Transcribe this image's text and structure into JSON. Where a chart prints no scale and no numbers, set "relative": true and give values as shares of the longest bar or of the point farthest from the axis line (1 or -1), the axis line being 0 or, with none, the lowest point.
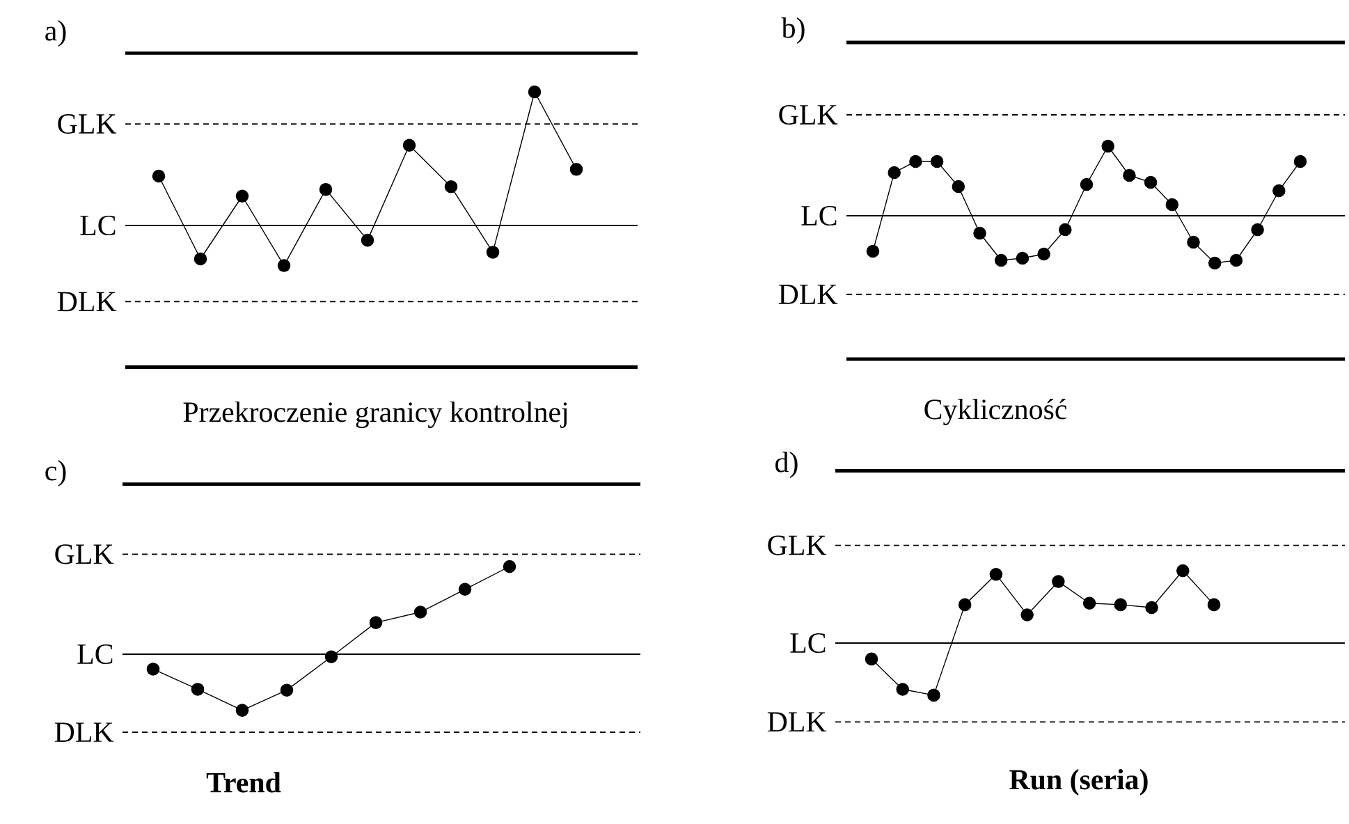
{
  "chart_data": [
    {
      "type": "line",
      "title": "a)",
      "xlabel": "Przekroczenie granicy kontrolnej",
      "categories": [
        null,
        null,
        null,
        null,
        null,
        null,
        null,
        null,
        null,
        null,
        null
      ],
      "relative": true,
      "marker": "circle",
      "line_style": "solid",
      "series": [
        {
          "color": "#000000",
          "values": [
            0.37,
            -0.25,
            0.22,
            -0.3,
            0.27,
            -0.11,
            0.6,
            0.29,
            -0.2,
            1,
            0.42
          ]
        }
      ],
      "ref_lines": [
        {
          "axis": "y",
          "value": 1.29,
          "color": "#000000",
          "line_style": "solid"
        },
        {
          "axis": "y",
          "value": 0.76,
          "label": "GLK",
          "color": "#000000",
          "line_style": "dashed"
        },
        {
          "axis": "y",
          "value": 0,
          "label": "LC",
          "color": "#000000",
          "line_style": "solid"
        },
        {
          "axis": "y",
          "value": -0.57,
          "label": "DLK",
          "color": "#000000",
          "line_style": "dashed"
        },
        {
          "axis": "y",
          "value": -1.06,
          "color": "#000000",
          "line_style": "solid"
        }
      ]
    },
    {
      "type": "line",
      "title": "b)",
      "xlabel": "Cykliczność",
      "categories": [
        null,
        null,
        null,
        null,
        null,
        null,
        null,
        null,
        null,
        null,
        null,
        null,
        null,
        null,
        null,
        null,
        null,
        null,
        null,
        null,
        null
      ],
      "relative": true,
      "marker": "circle",
      "line_style": "solid",
      "series": [
        {
          "color": "#000000",
          "values": [
            -0.51,
            0.62,
            0.78,
            0.78,
            0.42,
            -0.25,
            -0.64,
            -0.61,
            -0.55,
            -0.2,
            0.45,
            1,
            0.58,
            0.48,
            0.16,
            -0.38,
            -0.68,
            -0.64,
            -0.2,
            0.36,
            0.78
          ]
        }
      ],
      "ref_lines": [
        {
          "axis": "y",
          "value": 2.49,
          "color": "#000000",
          "line_style": "solid"
        },
        {
          "axis": "y",
          "value": 1.45,
          "label": "GLK",
          "color": "#000000",
          "line_style": "dashed"
        },
        {
          "axis": "y",
          "value": 0,
          "label": "LC",
          "color": "#000000",
          "line_style": "solid"
        },
        {
          "axis": "y",
          "value": -1.13,
          "label": "DLK",
          "color": "#000000",
          "line_style": "dashed"
        },
        {
          "axis": "y",
          "value": -2.06,
          "color": "#000000",
          "line_style": "solid"
        }
      ]
    },
    {
      "type": "line",
      "title": "c)",
      "xlabel": "Trend",
      "categories": [
        null,
        null,
        null,
        null,
        null,
        null,
        null,
        null,
        null
      ],
      "relative": true,
      "marker": "circle",
      "line_style": "solid",
      "series": [
        {
          "color": "#000000",
          "values": [
            -0.17,
            -0.4,
            -0.64,
            -0.41,
            -0.03,
            0.36,
            0.48,
            0.74,
            1
          ]
        }
      ],
      "ref_lines": [
        {
          "axis": "y",
          "value": 1.94,
          "color": "#000000",
          "line_style": "solid"
        },
        {
          "axis": "y",
          "value": 1.14,
          "label": "GLK",
          "color": "#000000",
          "line_style": "dashed"
        },
        {
          "axis": "y",
          "value": 0,
          "label": "LC",
          "color": "#000000",
          "line_style": "solid"
        },
        {
          "axis": "y",
          "value": -0.89,
          "label": "DLK",
          "color": "#000000",
          "line_style": "dashed"
        }
      ]
    },
    {
      "type": "line",
      "title": "d)",
      "xlabel": "Run (seria)",
      "categories": [
        null,
        null,
        null,
        null,
        null,
        null,
        null,
        null,
        null,
        null,
        null,
        null
      ],
      "relative": true,
      "marker": "circle",
      "line_style": "solid",
      "series": [
        {
          "color": "#000000",
          "values": [
            -0.22,
            -0.64,
            -0.72,
            0.53,
            0.95,
            0.39,
            0.85,
            0.55,
            0.53,
            0.49,
            1,
            0.53
          ]
        }
      ],
      "ref_lines": [
        {
          "axis": "y",
          "value": 2.38,
          "color": "#000000",
          "line_style": "solid"
        },
        {
          "axis": "y",
          "value": 1.35,
          "label": "GLK",
          "color": "#000000",
          "line_style": "dashed"
        },
        {
          "axis": "y",
          "value": 0,
          "label": "LC",
          "color": "#000000",
          "line_style": "solid"
        },
        {
          "axis": "y",
          "value": -1.09,
          "label": "DLK",
          "color": "#000000",
          "line_style": "dashed"
        }
      ]
    }
  ]
}
